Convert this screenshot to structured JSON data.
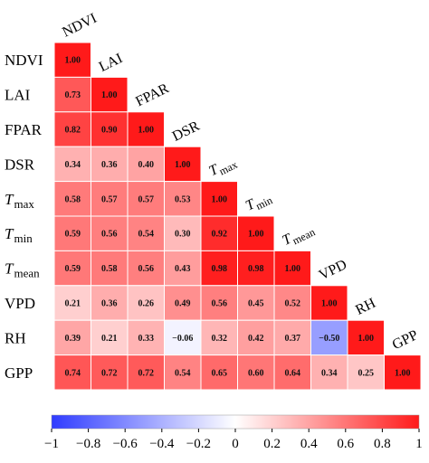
{
  "chart_data": {
    "type": "heatmap",
    "title": "",
    "xlabel": "",
    "ylabel": "",
    "variables": [
      {
        "id": "NDVI",
        "text": "NDVI",
        "sub": ""
      },
      {
        "id": "LAI",
        "text": "LAI",
        "sub": ""
      },
      {
        "id": "FPAR",
        "text": "FPAR",
        "sub": ""
      },
      {
        "id": "DSR",
        "text": "DSR",
        "sub": ""
      },
      {
        "id": "Tmax",
        "text": "T",
        "sub": "max"
      },
      {
        "id": "Tmin",
        "text": "T",
        "sub": "min"
      },
      {
        "id": "Tmean",
        "text": "T",
        "sub": "mean"
      },
      {
        "id": "VPD",
        "text": "VPD",
        "sub": ""
      },
      {
        "id": "RH",
        "text": "RH",
        "sub": ""
      },
      {
        "id": "GPP",
        "text": "GPP",
        "sub": ""
      }
    ],
    "matrix": [
      [
        1.0
      ],
      [
        0.73,
        1.0
      ],
      [
        0.82,
        0.9,
        1.0
      ],
      [
        0.34,
        0.36,
        0.4,
        1.0
      ],
      [
        0.58,
        0.57,
        0.57,
        0.53,
        1.0
      ],
      [
        0.59,
        0.56,
        0.54,
        0.3,
        0.92,
        1.0
      ],
      [
        0.59,
        0.58,
        0.56,
        0.43,
        0.98,
        0.98,
        1.0
      ],
      [
        0.21,
        0.36,
        0.26,
        0.49,
        0.56,
        0.45,
        0.52,
        1.0
      ],
      [
        0.39,
        0.21,
        0.33,
        -0.06,
        0.32,
        0.42,
        0.37,
        -0.5,
        1.0
      ],
      [
        0.74,
        0.72,
        0.72,
        0.54,
        0.65,
        0.6,
        0.64,
        0.34,
        0.25,
        1.0
      ]
    ],
    "cell_labels": [
      [
        "1.00"
      ],
      [
        "0.73",
        "1.00"
      ],
      [
        "0.82",
        "0.90",
        "1.00"
      ],
      [
        "0.34",
        "0.36",
        "0.40",
        "1.00"
      ],
      [
        "0.58",
        "0.57",
        "0.57",
        "0.53",
        "1.00"
      ],
      [
        "0.59",
        "0.56",
        "0.54",
        "0.30",
        "0.92",
        "1.00"
      ],
      [
        "0.59",
        "0.58",
        "0.56",
        "0.43",
        "0.98",
        "0.98",
        "1.00"
      ],
      [
        "0.21",
        "0.36",
        "0.26",
        "0.49",
        "0.56",
        "0.45",
        "0.52",
        "1.00"
      ],
      [
        "0.39",
        "0.21",
        "0.33",
        "−0.06",
        "0.32",
        "0.42",
        "0.37",
        "−0.50",
        "1.00"
      ],
      [
        "0.74",
        "0.72",
        "0.72",
        "0.54",
        "0.65",
        "0.60",
        "0.64",
        "0.34",
        "0.25",
        "1.00"
      ]
    ],
    "colorbar": {
      "range": [
        -1,
        1
      ],
      "ticks": [
        -1,
        -0.8,
        -0.6,
        -0.4,
        -0.2,
        0,
        0.2,
        0.4,
        0.6,
        0.8,
        1
      ],
      "tick_labels": [
        "−1",
        "−0.8",
        "−0.6",
        "−0.4",
        "−0.2",
        "0",
        "0.2",
        "0.4",
        "0.6",
        "0.8",
        "1"
      ],
      "colors": {
        "negative": "#2f3cff",
        "zero": "#ffffff",
        "positive": "#ff1a1a"
      }
    },
    "grid": true
  }
}
